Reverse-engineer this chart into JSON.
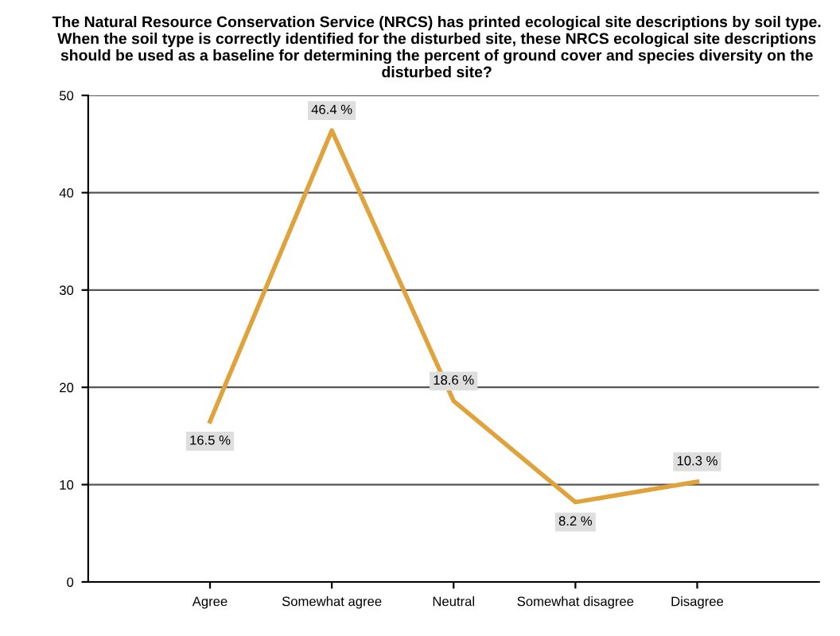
{
  "chart_data": {
    "type": "line",
    "title": "The Natural Resource Conservation Service (NRCS) has printed ecological site descriptions by soil type. When the soil type is correctly identified for the disturbed site, these NRCS ecological site descriptions should be used as a baseline for determining the percent of ground cover and species diversity on the disturbed site?",
    "categories": [
      "Agree",
      "Somewhat agree",
      "Neutral",
      "Somewhat disagree",
      "Disagree"
    ],
    "series": [
      {
        "color": "#e0a23a",
        "values": [
          16.5,
          46.4,
          18.6,
          8.2,
          10.3
        ],
        "value_labels": [
          "16.5 %",
          "46.4 %",
          "18.6 %",
          "8.2 %",
          "10.3 %"
        ]
      }
    ],
    "ylim": [
      0,
      50
    ],
    "yticks": [
      0,
      10,
      20,
      30,
      40,
      50
    ],
    "grid": "y",
    "legend": false,
    "marker": "none",
    "line_style": "solid"
  }
}
